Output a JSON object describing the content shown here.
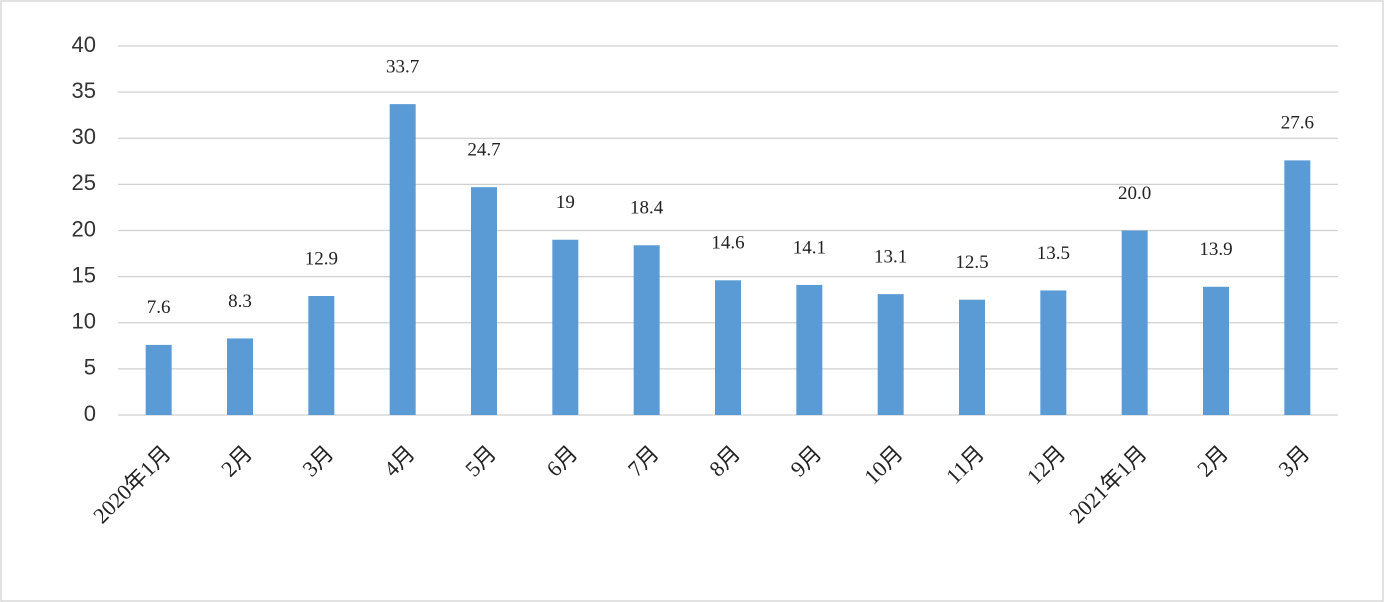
{
  "chart_data": {
    "type": "bar",
    "categories": [
      "2020年1月",
      "2月",
      "3月",
      "4月",
      "5月",
      "6月",
      "7月",
      "8月",
      "9月",
      "10月",
      "11月",
      "12月",
      "2021年1月",
      "2月",
      "3月"
    ],
    "values": [
      7.6,
      8.3,
      12.9,
      33.7,
      24.7,
      19,
      18.4,
      14.6,
      14.1,
      13.1,
      12.5,
      13.5,
      20.0,
      13.9,
      27.6
    ],
    "value_labels": [
      "7.6",
      "8.3",
      "12.9",
      "33.7",
      "24.7",
      "19",
      "18.4",
      "14.6",
      "14.1",
      "13.1",
      "12.5",
      "13.5",
      "20.0",
      "13.9",
      "27.6"
    ],
    "color": "#5b9bd5",
    "ylim": [
      0,
      40
    ],
    "yticks": [
      0,
      5,
      10,
      15,
      20,
      25,
      30,
      35,
      40
    ],
    "grid": true
  }
}
